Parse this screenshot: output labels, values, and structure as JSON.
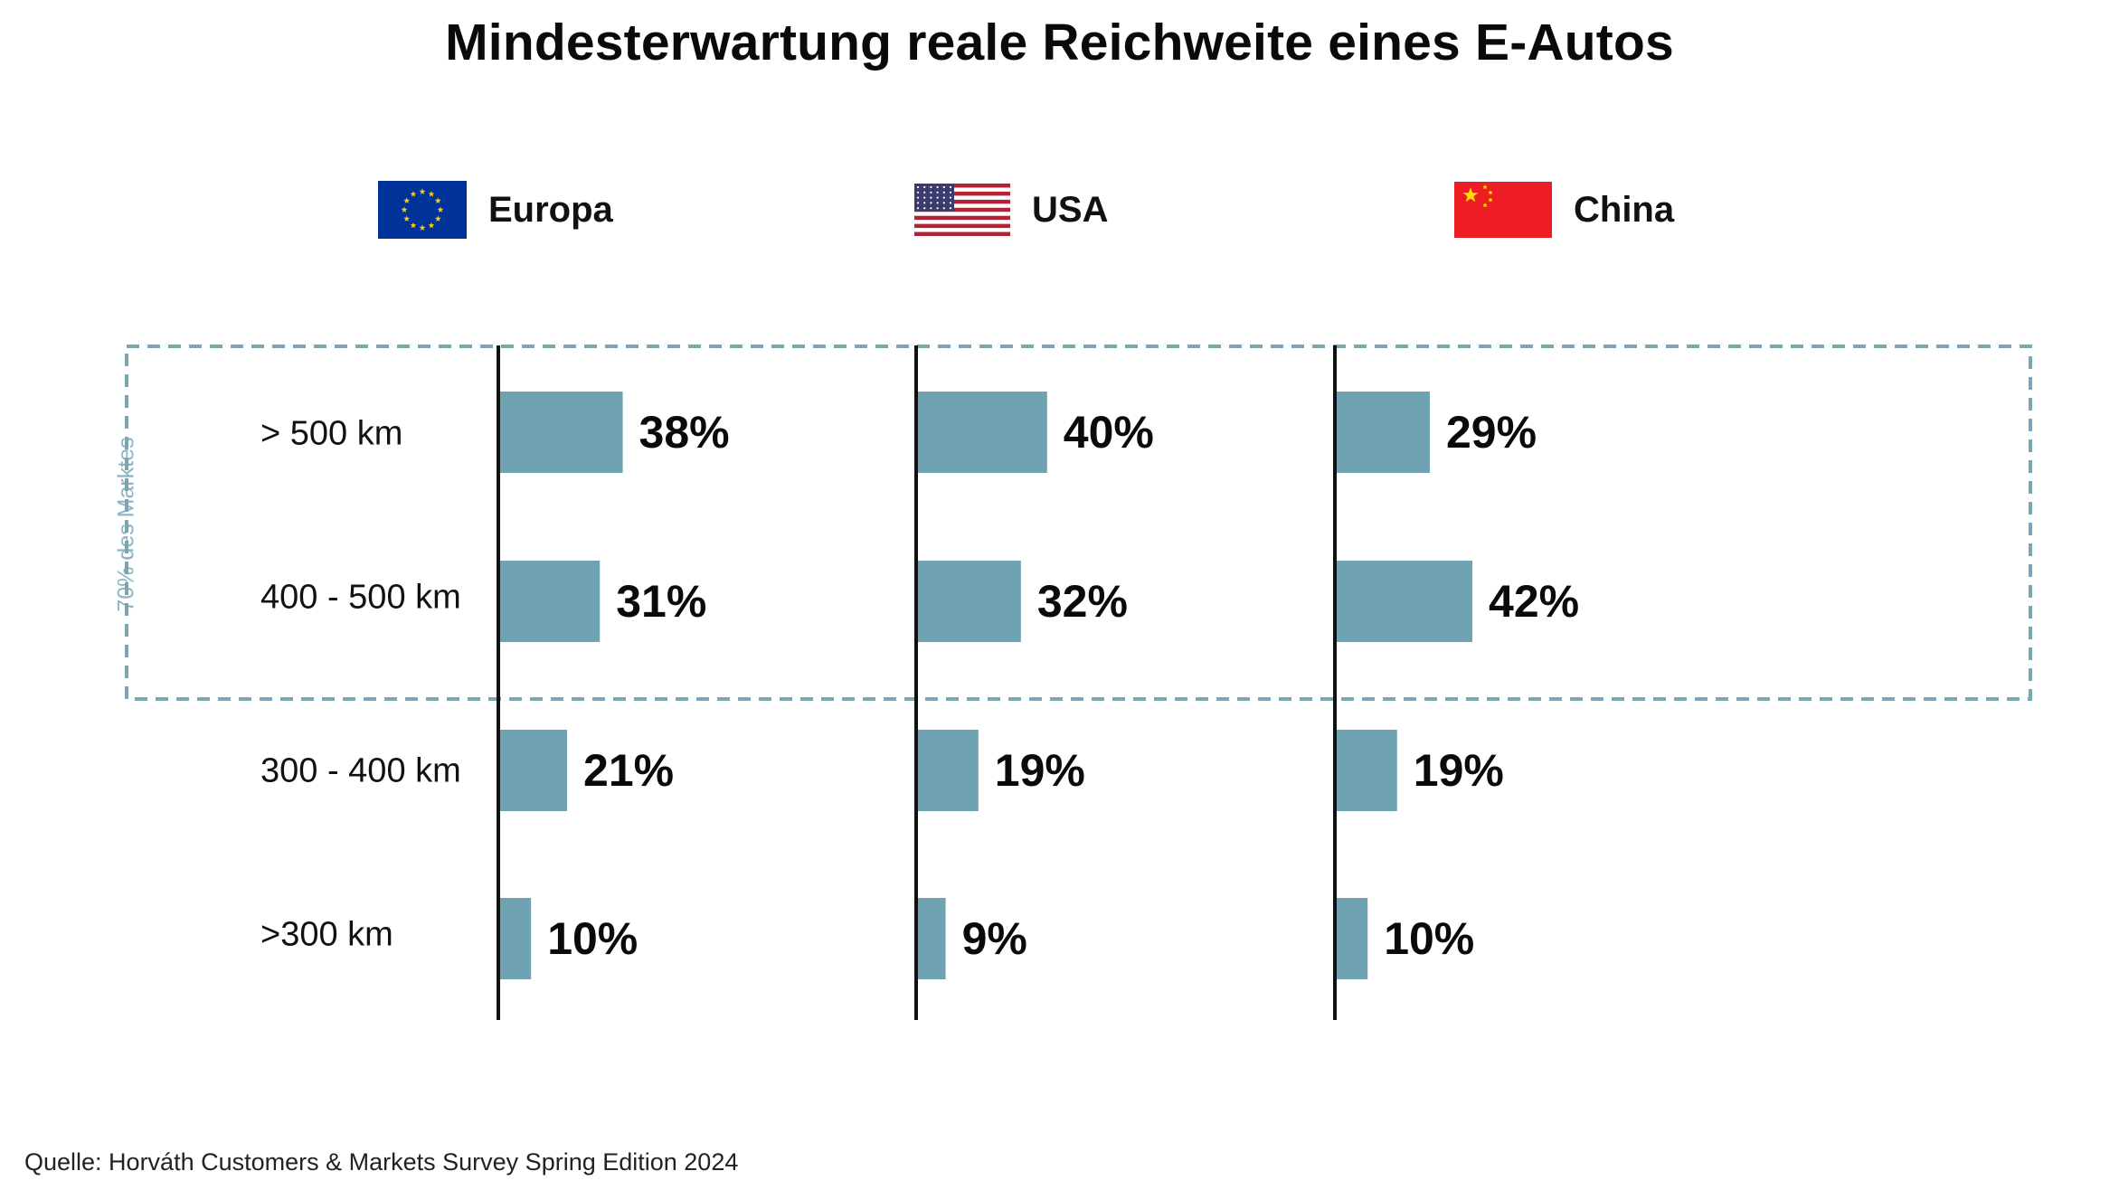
{
  "title": "Mindesterwartung reale Reichweite eines E-Autos",
  "legend": [
    {
      "label": "Europa",
      "icon": "eu-flag-icon"
    },
    {
      "label": "USA",
      "icon": "us-flag-icon"
    },
    {
      "label": "China",
      "icon": "china-flag-icon"
    }
  ],
  "market_note": "70% des Marktes",
  "source": "Quelle: Horváth Customers & Markets Survey Spring Edition 2024",
  "colors": {
    "bar": "#6fa3b3",
    "dashed_box": "#7aa6b3",
    "axis": "#111111",
    "eu_blue": "#003399",
    "eu_star": "#ffcc00",
    "us_red": "#b22234",
    "us_blue": "#3c3b6e",
    "cn_red": "#ee1c25",
    "cn_star": "#ffde00"
  },
  "chart_data": {
    "type": "bar",
    "orientation": "horizontal",
    "categories": [
      "> 500 km",
      "400 - 500 km",
      "300 - 400 km",
      ">300 km"
    ],
    "series": [
      {
        "name": "Europa",
        "values": [
          38,
          31,
          21,
          10
        ],
        "labels": [
          "38%",
          "31%",
          "21%",
          "10%"
        ]
      },
      {
        "name": "USA",
        "values": [
          40,
          32,
          19,
          9
        ],
        "labels": [
          "40%",
          "32%",
          "19%",
          "9%"
        ]
      },
      {
        "name": "China",
        "values": [
          29,
          42,
          19,
          10
        ],
        "labels": [
          "29%",
          "42%",
          "19%",
          "10%"
        ]
      }
    ],
    "value_unit": "%",
    "grid": false,
    "legend_position": "top",
    "highlight": {
      "categories": [
        "> 500 km",
        "400 - 500 km"
      ],
      "label": "70% des Marktes"
    }
  }
}
